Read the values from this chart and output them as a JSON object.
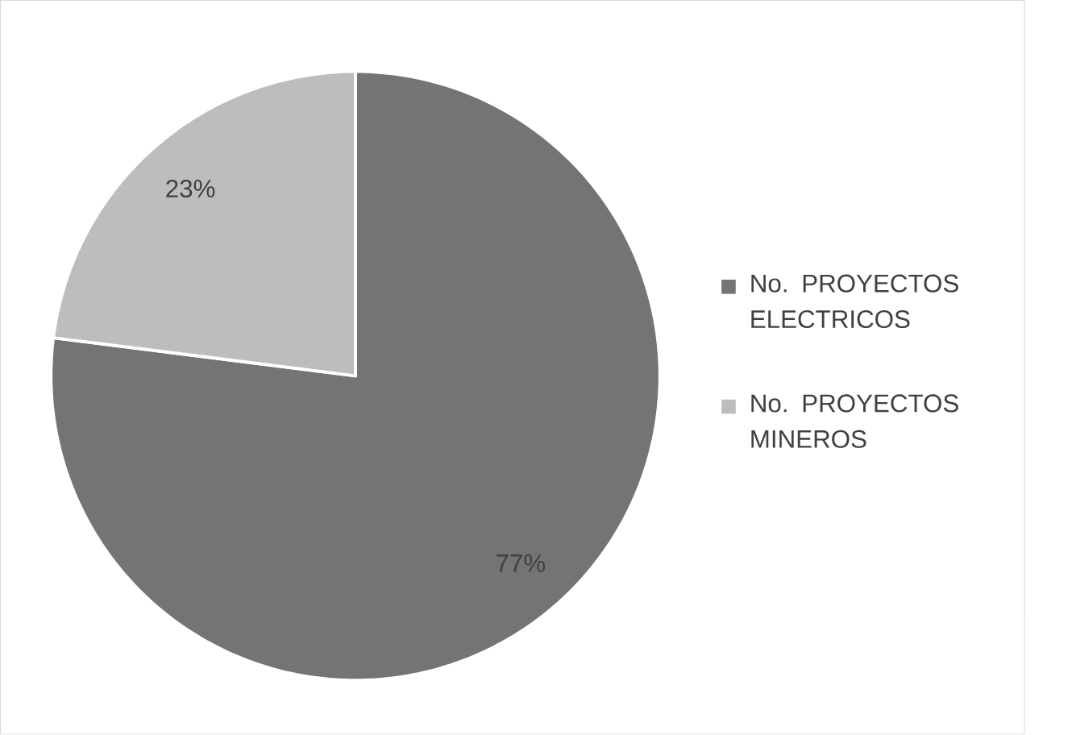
{
  "chart_data": {
    "type": "pie",
    "categories": [
      "No. PROYECTOS ELECTRICOS",
      "No. PROYECTOS MINEROS"
    ],
    "values": [
      77,
      23
    ],
    "colors": [
      "#747474",
      "#bdbdbd"
    ],
    "value_labels": [
      "77%",
      "23%"
    ],
    "legend": "right"
  }
}
